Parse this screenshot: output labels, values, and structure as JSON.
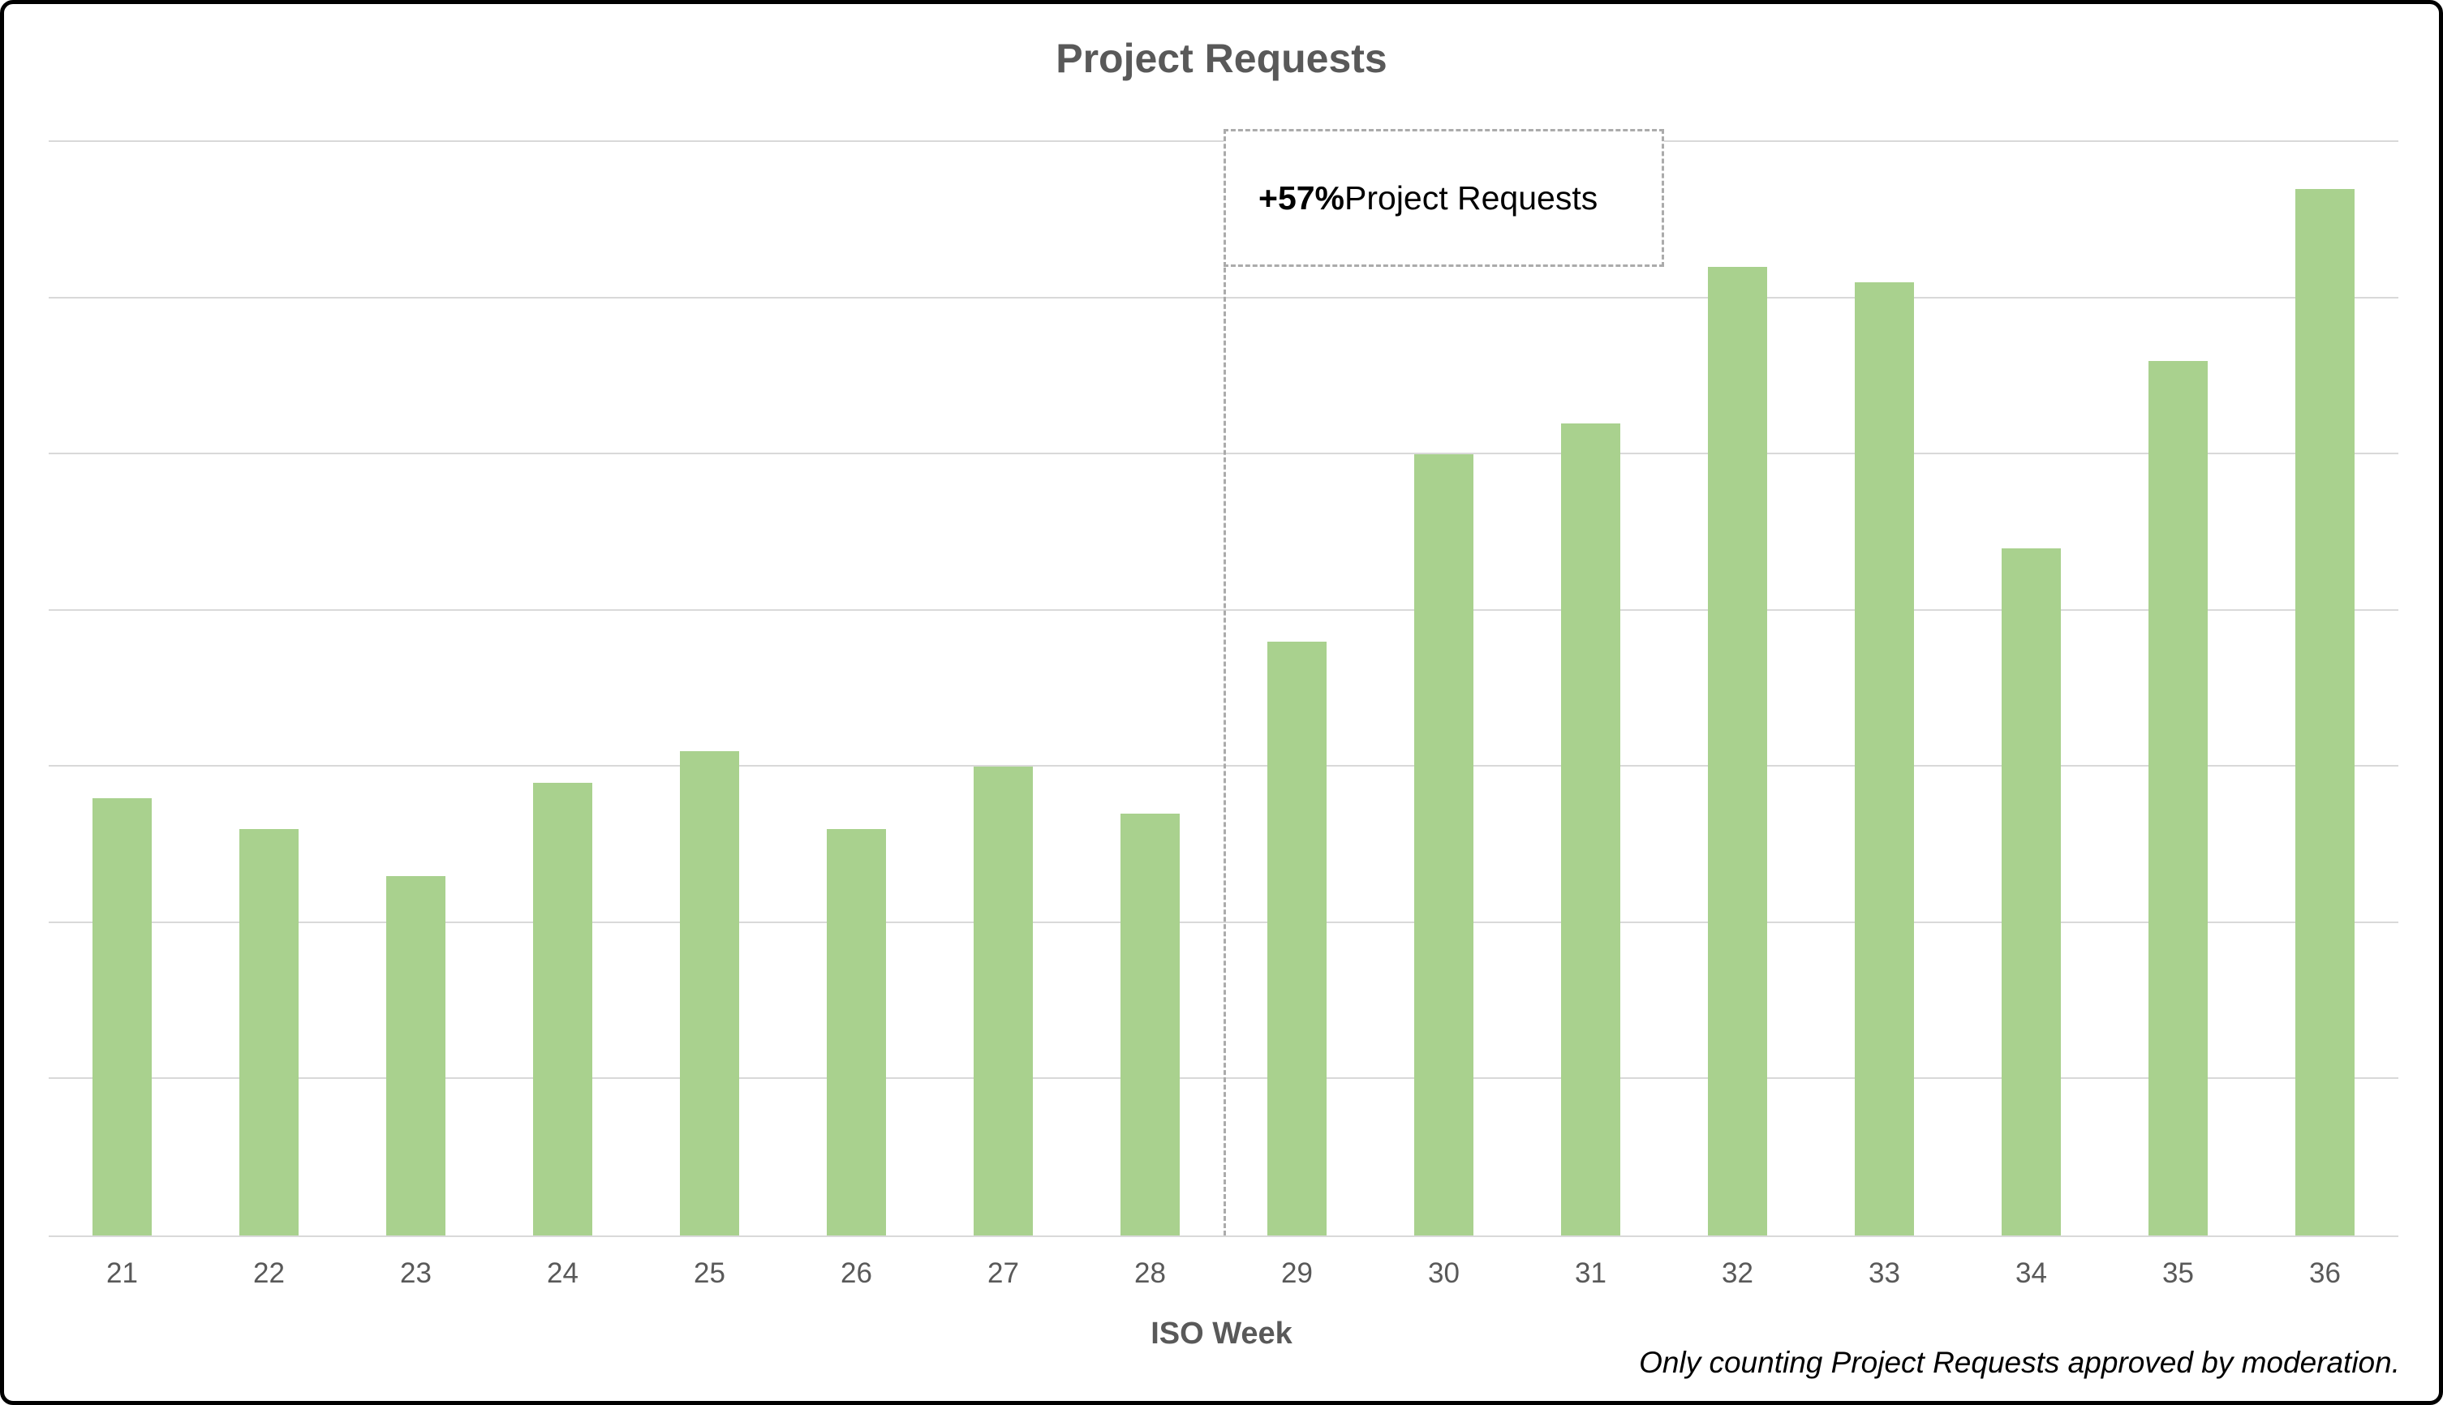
{
  "chart_data": {
    "type": "bar",
    "title": "Project Requests",
    "xlabel": "ISO Week",
    "ylabel": "",
    "categories": [
      "21",
      "22",
      "23",
      "24",
      "25",
      "26",
      "27",
      "28",
      "29",
      "30",
      "31",
      "32",
      "33",
      "34",
      "35",
      "36"
    ],
    "values": [
      28,
      26,
      23,
      29,
      31,
      26,
      30,
      27,
      38,
      50,
      52,
      62,
      61,
      44,
      56,
      67
    ],
    "ylim": [
      0,
      70
    ],
    "gridline_step": 10,
    "grid": "horizontal",
    "legend": "none",
    "bar_color": "#A9D18E",
    "gridline_color": "#d9d9d9",
    "text_color": "#595959",
    "annotation": {
      "bold": "+57%",
      "rest": " Project Requests",
      "divider_after_index": 8,
      "box_span_categories": 3
    },
    "footnote": "Only counting Project Requests approved by moderation."
  }
}
